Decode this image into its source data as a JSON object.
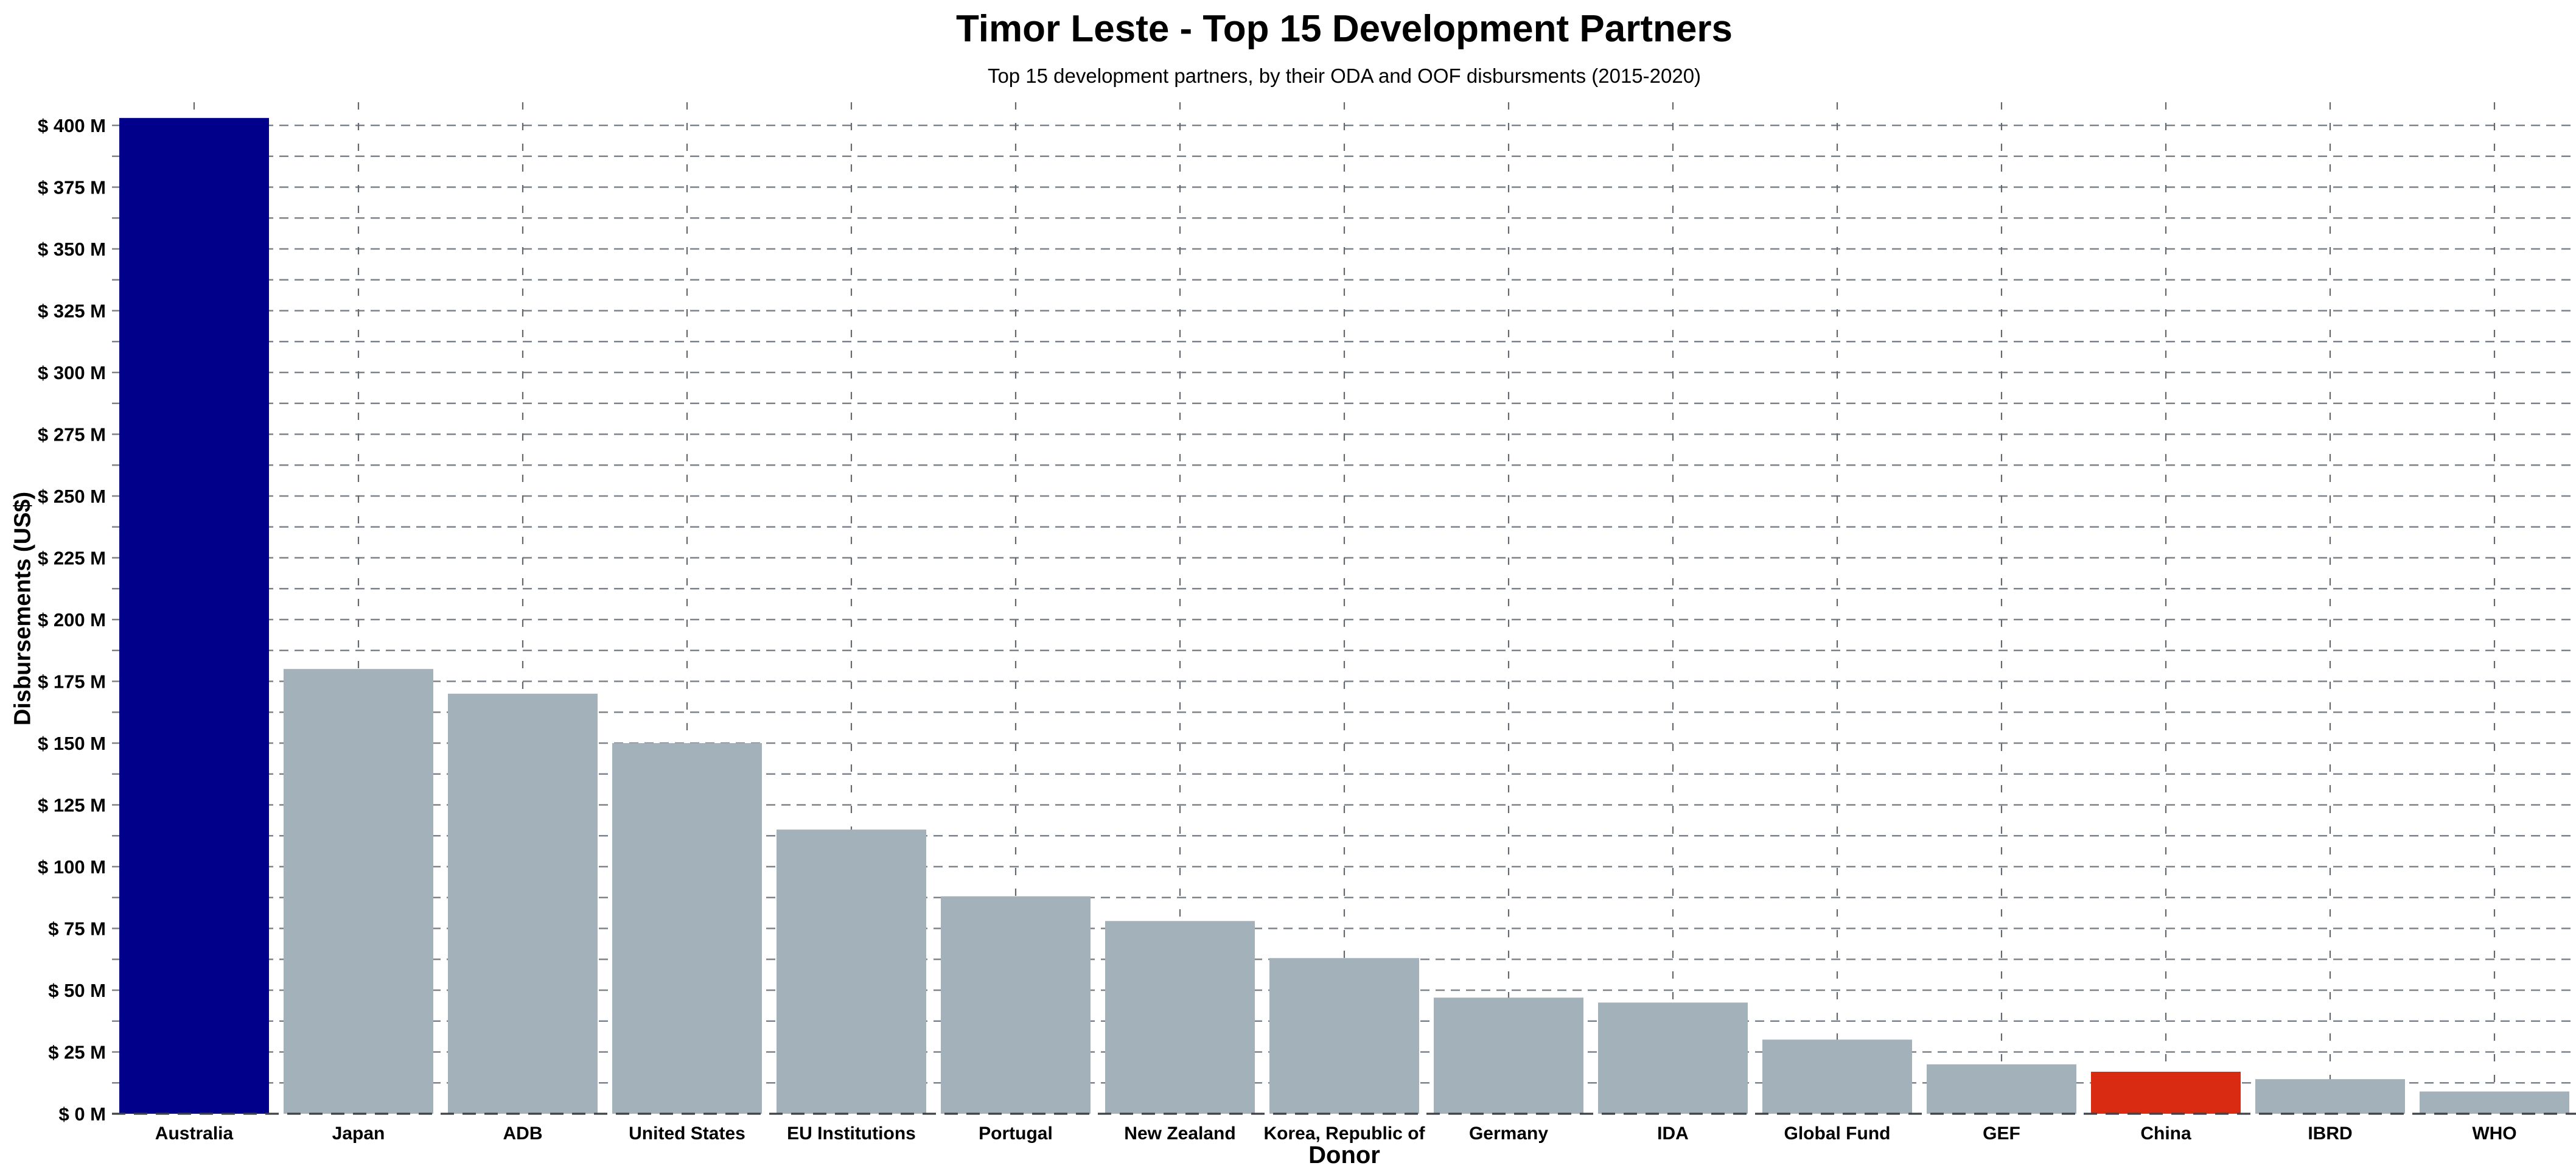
{
  "chart_data": {
    "type": "bar",
    "title": "Timor Leste - Top 15 Development Partners",
    "subtitle": "Top 15 development partners, by their ODA and OOF disbursments (2015-2020)",
    "xlabel": "Donor",
    "ylabel": "Disbursements (US$)",
    "unit": "million US$",
    "categories": [
      "Australia",
      "Japan",
      "ADB",
      "United States",
      "EU Institutions",
      "Portugal",
      "New Zealand",
      "Korea, Republic of",
      "Germany",
      "IDA",
      "Global Fund",
      "GEF",
      "China",
      "IBRD",
      "WHO"
    ],
    "values": [
      403,
      180,
      170,
      150,
      115,
      88,
      78,
      63,
      47,
      45,
      30,
      20,
      17,
      14,
      9
    ],
    "bar_colors": [
      "#00008B",
      "#A3B1BA",
      "#A3B1BA",
      "#A3B1BA",
      "#A3B1BA",
      "#A3B1BA",
      "#A3B1BA",
      "#A3B1BA",
      "#A3B1BA",
      "#A3B1BA",
      "#A3B1BA",
      "#A3B1BA",
      "#D92B12",
      "#A3B1BA",
      "#A3B1BA"
    ],
    "ylim": [
      0,
      400
    ],
    "y_tick_step": 25,
    "y_ticks": [
      "$ 0 M",
      "$ 25 M",
      "$ 50 M",
      "$ 75 M",
      "$ 100 M",
      "$ 125 M",
      "$ 150 M",
      "$ 175 M",
      "$ 200 M",
      "$ 225 M",
      "$ 250 M",
      "$ 275 M",
      "$ 300 M",
      "$ 325 M",
      "$ 350 M",
      "$ 375 M",
      "$ 400 M"
    ],
    "grid_step": 12.5,
    "grid_style": "dashed",
    "legend_position": "none",
    "colors": {
      "highlight_top": "#00008B",
      "default_bar": "#A3B1BA",
      "highlight_china": "#D92B12",
      "gridline": "#7d838b",
      "vertical_gridline": "#63686f",
      "baseline": "#3d4248"
    }
  }
}
